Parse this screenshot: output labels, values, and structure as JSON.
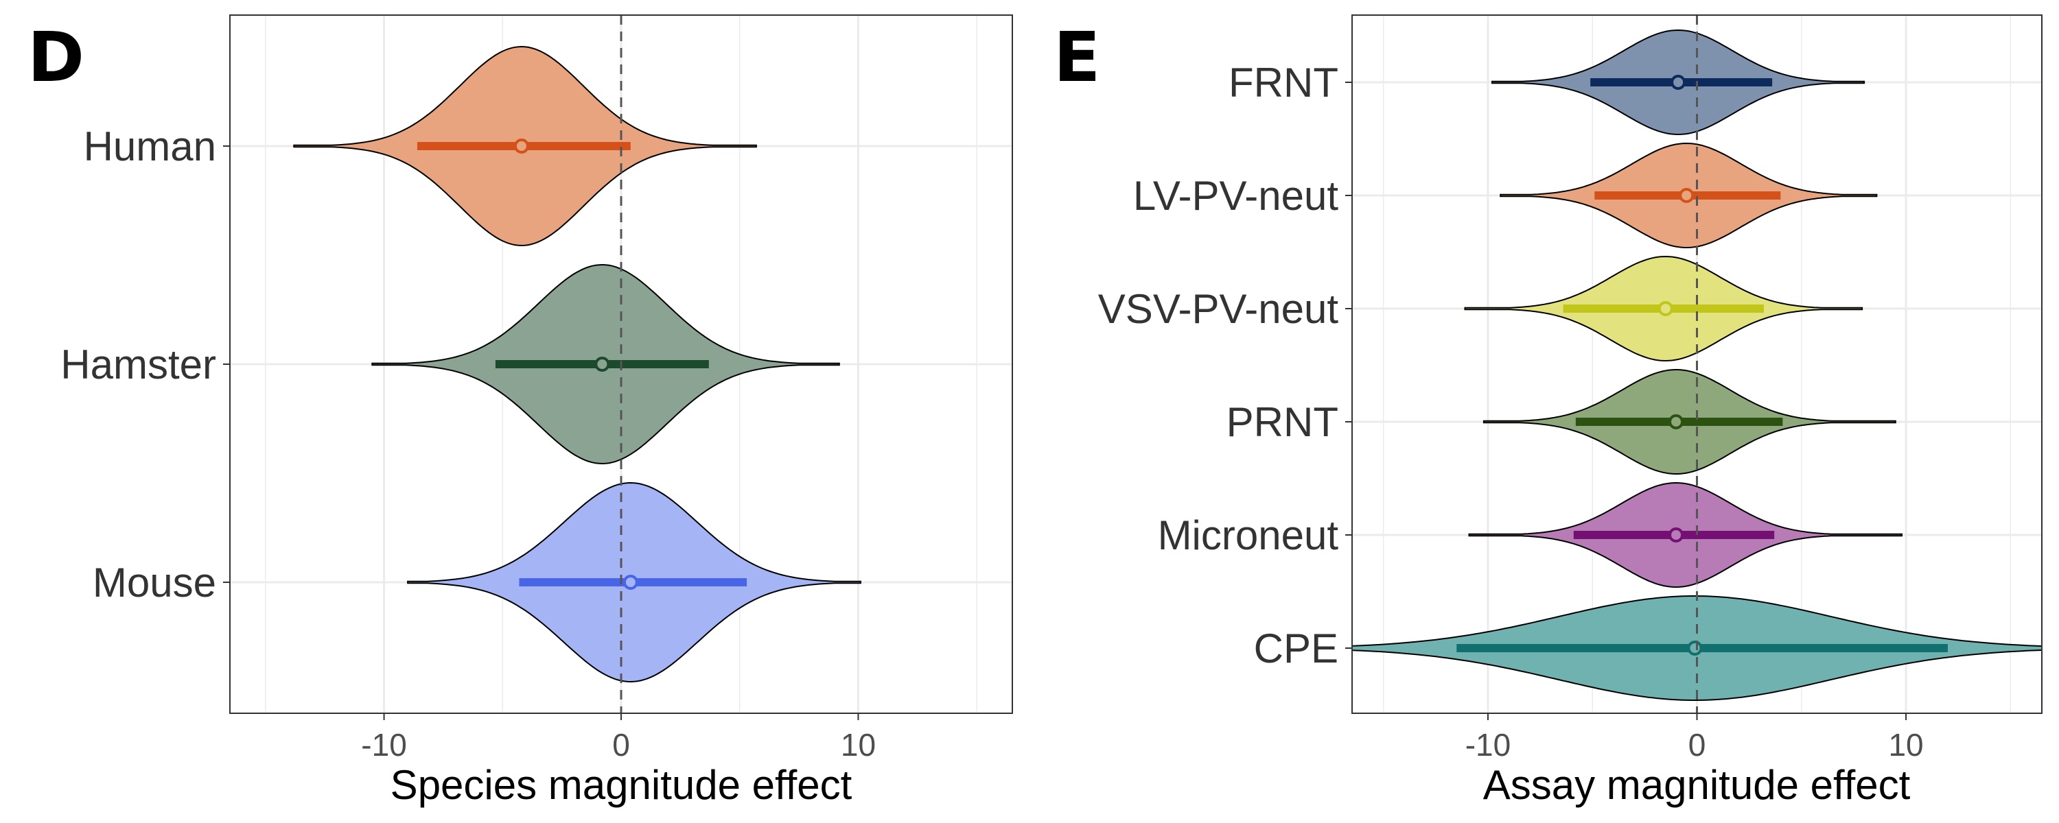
{
  "chart_data": [
    {
      "type": "violin",
      "panel_label": "D",
      "xlabel": "Species magnitude effect",
      "ylabel": "",
      "xlim": [
        -16.5,
        16.5
      ],
      "xticks": [
        -10,
        0,
        10
      ],
      "reference_line": 0,
      "grid": true,
      "categories": [
        "Human",
        "Hamster",
        "Mouse"
      ],
      "series": [
        {
          "name": "Human",
          "center": -4.2,
          "sd": 2.6,
          "interval": [
            -8.6,
            0.4
          ],
          "range": [
            -13.8,
            5.7
          ],
          "fill": "#e8a47f",
          "line_color": "#d4521a"
        },
        {
          "name": "Hamster",
          "center": -0.8,
          "sd": 2.7,
          "interval": [
            -5.3,
            3.7
          ],
          "range": [
            -10.5,
            9.2
          ],
          "fill": "#8aa393",
          "line_color": "#1c4a2c"
        },
        {
          "name": "Mouse",
          "center": 0.4,
          "sd": 2.8,
          "interval": [
            -4.3,
            5.3
          ],
          "range": [
            -9.0,
            10.1
          ],
          "fill": "#a5b4f5",
          "line_color": "#4865e8"
        }
      ]
    },
    {
      "type": "violin",
      "panel_label": "E",
      "xlabel": "Assay magnitude effect",
      "ylabel": "",
      "xlim": [
        -16.5,
        16.5
      ],
      "xticks": [
        -10,
        0,
        10
      ],
      "reference_line": 0,
      "grid": true,
      "categories": [
        "FRNT",
        "LV-PV-neut",
        "VSV-PV-neut",
        "PRNT",
        "Microneut",
        "CPE"
      ],
      "series": [
        {
          "name": "FRNT",
          "center": -0.9,
          "sd": 2.6,
          "interval": [
            -5.1,
            3.6
          ],
          "range": [
            -9.8,
            8.0
          ],
          "fill": "#7f92ad",
          "line_color": "#0d2a5c"
        },
        {
          "name": "LV-PV-neut",
          "center": -0.5,
          "sd": 2.6,
          "interval": [
            -4.9,
            4.0
          ],
          "range": [
            -9.4,
            8.6
          ],
          "fill": "#e8a47f",
          "line_color": "#d4521a"
        },
        {
          "name": "VSV-PV-neut",
          "center": -1.5,
          "sd": 2.6,
          "interval": [
            -6.4,
            3.2
          ],
          "range": [
            -11.1,
            7.9
          ],
          "fill": "#e2e37f",
          "line_color": "#c2c51a"
        },
        {
          "name": "PRNT",
          "center": -1.0,
          "sd": 2.6,
          "interval": [
            -5.8,
            4.1
          ],
          "range": [
            -10.2,
            9.5
          ],
          "fill": "#8ea77b",
          "line_color": "#2b5210"
        },
        {
          "name": "Microneut",
          "center": -1.0,
          "sd": 2.6,
          "interval": [
            -5.9,
            3.7
          ],
          "range": [
            -10.9,
            9.8
          ],
          "fill": "#b77bb6",
          "line_color": "#740f73"
        },
        {
          "name": "CPE",
          "center": -0.1,
          "sd": 6.5,
          "interval": [
            -11.5,
            12.0
          ],
          "range": [
            -16.5,
            16.5
          ],
          "fill": "#70b2b0",
          "line_color": "#11706e"
        }
      ]
    }
  ]
}
